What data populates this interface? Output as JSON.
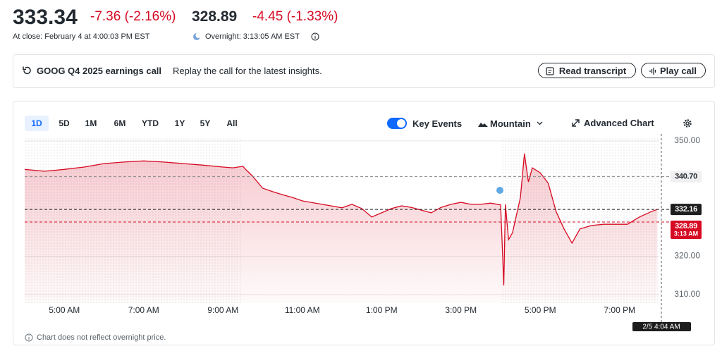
{
  "header": {
    "close_price": "333.34",
    "close_change": "-7.36 (-2.16%)",
    "overnight_price": "328.89",
    "overnight_change": "-4.45 (-1.33%)",
    "close_time": "At close: February 4 at 4:00:03 PM EST",
    "overnight_time": "Overnight: 3:13:05 AM EST"
  },
  "banner": {
    "title": "GOOG Q4 2025 earnings call",
    "text": "Replay the call for the latest insights.",
    "buttons": [
      "Read transcript",
      "Play call"
    ]
  },
  "toolbar": {
    "ranges": [
      "1D",
      "5D",
      "1M",
      "6M",
      "YTD",
      "1Y",
      "5Y",
      "All"
    ],
    "selected": 0,
    "toggle": "Key Events",
    "chart_style": "Mountain",
    "advanced": "Advanced Chart"
  },
  "chart_data": {
    "type": "area",
    "series": [
      {
        "name": "GOOG",
        "color": "#d60a22",
        "x": [
          4,
          4.5,
          5,
          5.5,
          6,
          6.5,
          7,
          7.5,
          8,
          8.5,
          9,
          9.25,
          9.5,
          9.6,
          9.75,
          10,
          10.25,
          10.5,
          10.75,
          11,
          11.5,
          12,
          12.25,
          12.5,
          12.75,
          13,
          13.25,
          13.5,
          13.75,
          14,
          14.25,
          14.5,
          14.75,
          15,
          15.25,
          15.5,
          15.75,
          16,
          16.05,
          16.08,
          16.12,
          16.2,
          16.3,
          16.4,
          16.5,
          16.6,
          16.7,
          16.8,
          17,
          17.2,
          17.4,
          17.6,
          17.8,
          18,
          18.3,
          18.6,
          18.9,
          19.2,
          19.5,
          19.8,
          19.95
        ],
        "values": [
          342.6,
          342.1,
          342.6,
          343.2,
          344.1,
          344.5,
          344.8,
          344.5,
          344.1,
          343.7,
          343.2,
          343.0,
          343.4,
          342.3,
          340.8,
          337.7,
          336.8,
          336.0,
          335.3,
          334.4,
          333.5,
          332.6,
          333.5,
          332.4,
          330.2,
          331.3,
          332.4,
          333.1,
          332.7,
          332.0,
          331.3,
          332.7,
          333.5,
          334.0,
          333.5,
          333.5,
          333.8,
          333.34,
          320.6,
          312.4,
          333.5,
          324.3,
          326.1,
          330.7,
          335.3,
          346.7,
          339.3,
          343.0,
          341.7,
          339.0,
          331.6,
          327.1,
          323.4,
          327.1,
          328.0,
          328.3,
          328.3,
          328.3,
          330.2,
          331.6,
          332.16
        ]
      }
    ],
    "xlim": [
      4,
      20
    ],
    "xticks": [
      {
        "value": 5,
        "label": "5:00 AM"
      },
      {
        "value": 7,
        "label": "7:00 AM"
      },
      {
        "value": 9,
        "label": "9:00 AM"
      },
      {
        "value": 11,
        "label": "11:00 AM"
      },
      {
        "value": 13,
        "label": "1:00 PM"
      },
      {
        "value": 15,
        "label": "3:00 PM"
      },
      {
        "value": 17,
        "label": "5:00 PM"
      },
      {
        "value": 19,
        "label": "7:00 PM"
      }
    ],
    "ylim": [
      307.8,
      350.9
    ],
    "yticks": [
      {
        "value": 350,
        "label": "350.00"
      },
      {
        "value": 320,
        "label": "320.00"
      },
      {
        "value": 310,
        "label": "310.00"
      }
    ],
    "grid": true,
    "regular_session": [
      9.5,
      16
    ],
    "price_markers": [
      {
        "value": 340.7,
        "label": "340.70",
        "color": "#888888"
      },
      {
        "value": 332.16,
        "color": "#1d1d1d"
      },
      {
        "value": 328.89,
        "time": "3:13 AM",
        "color": "#d60a22"
      }
    ],
    "cursor_time": "2/5 4:04 AM"
  },
  "footer": {
    "note": "Chart does not reflect overnight price."
  }
}
